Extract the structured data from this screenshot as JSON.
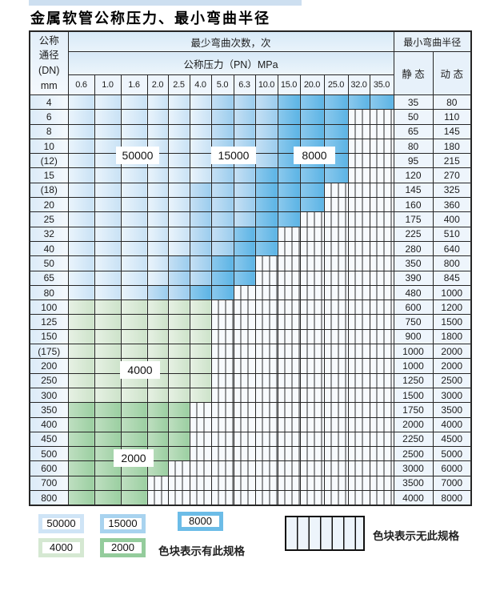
{
  "page": {
    "title": "金属软管公称压力、最小弯曲半径"
  },
  "table": {
    "dn_header_lines": [
      "公称",
      "通径",
      "(DN)",
      "mm"
    ],
    "cycles_header": "最少弯曲次数，次",
    "pressure_header": "公称压力（PN）MPa",
    "radius_header": "最小弯曲半径",
    "static_label": "静 态",
    "dynamic_label": "动 态",
    "pressures": [
      "0.6",
      "1.0",
      "1.6",
      "2.0",
      "2.5",
      "4.0",
      "5.0",
      "6.3",
      "10.0",
      "15.0",
      "20.0",
      "25.0",
      "32.0",
      "35.0"
    ],
    "band_codes": {
      "A": "50000 次",
      "B": "15000 次",
      "C": "8000 次",
      "D": "4000 次",
      "E": "2000 次",
      ".": "无此规格"
    },
    "rows": [
      {
        "dn": "4",
        "cells": "AAAAAABBBCCCCC",
        "static": "35",
        "dynamic": "80"
      },
      {
        "dn": "6",
        "cells": "AAAAAABBBCCC..",
        "static": "50",
        "dynamic": "110"
      },
      {
        "dn": "8",
        "cells": "AAAAAABBBCCC..",
        "static": "65",
        "dynamic": "145"
      },
      {
        "dn": "10",
        "cells": "AAAAAABBBCCC..",
        "static": "80",
        "dynamic": "180"
      },
      {
        "dn": "(12)",
        "cells": "AAAAAABBBCCC..",
        "static": "95",
        "dynamic": "215"
      },
      {
        "dn": "15",
        "cells": "AAAAAABBCCCC..",
        "static": "120",
        "dynamic": "270"
      },
      {
        "dn": "(18)",
        "cells": "AAAAABBBCCC...",
        "static": "145",
        "dynamic": "325"
      },
      {
        "dn": "20",
        "cells": "AAAAABBBCCC...",
        "static": "160",
        "dynamic": "360"
      },
      {
        "dn": "25",
        "cells": "AAAAABBBCC....",
        "static": "175",
        "dynamic": "400"
      },
      {
        "dn": "32",
        "cells": "AAAAABBCC.....",
        "static": "225",
        "dynamic": "510"
      },
      {
        "dn": "40",
        "cells": "AAAAABBCC.....",
        "static": "280",
        "dynamic": "640"
      },
      {
        "dn": "50",
        "cells": "AAAABBCC......",
        "static": "350",
        "dynamic": "800"
      },
      {
        "dn": "65",
        "cells": "AAAABBCC......",
        "static": "390",
        "dynamic": "845"
      },
      {
        "dn": "80",
        "cells": "AAABBCC.......",
        "static": "480",
        "dynamic": "1000"
      },
      {
        "dn": "100",
        "cells": "DDDDDD........",
        "static": "600",
        "dynamic": "1200"
      },
      {
        "dn": "125",
        "cells": "DDDDDD........",
        "static": "750",
        "dynamic": "1500"
      },
      {
        "dn": "150",
        "cells": "DDDDDD........",
        "static": "900",
        "dynamic": "1800"
      },
      {
        "dn": "(175)",
        "cells": "DDDDDD........",
        "static": "1000",
        "dynamic": "2000"
      },
      {
        "dn": "200",
        "cells": "DDDDDD........",
        "static": "1000",
        "dynamic": "2000"
      },
      {
        "dn": "250",
        "cells": "DDDDDD........",
        "static": "1250",
        "dynamic": "2500"
      },
      {
        "dn": "300",
        "cells": "DDDDDD........",
        "static": "1500",
        "dynamic": "3000"
      },
      {
        "dn": "350",
        "cells": "EEEEE.........",
        "static": "1750",
        "dynamic": "3500"
      },
      {
        "dn": "400",
        "cells": "EEEEE.........",
        "static": "2000",
        "dynamic": "4000"
      },
      {
        "dn": "450",
        "cells": "EEEEE.........",
        "static": "2250",
        "dynamic": "4500"
      },
      {
        "dn": "500",
        "cells": "EEEEE.........",
        "static": "2500",
        "dynamic": "5000"
      },
      {
        "dn": "600",
        "cells": "EEEE..........",
        "static": "3000",
        "dynamic": "6000"
      },
      {
        "dn": "700",
        "cells": "EEE...........",
        "static": "3500",
        "dynamic": "7000"
      },
      {
        "dn": "800",
        "cells": "EEE...........",
        "static": "4000",
        "dynamic": "8000"
      }
    ]
  },
  "overlay_labels": [
    {
      "text": "50000"
    },
    {
      "text": "15000"
    },
    {
      "text": "8000"
    },
    {
      "text": "4000"
    },
    {
      "text": "2000"
    }
  ],
  "legend": {
    "items": [
      {
        "value": "50000",
        "color": "#cfe4f6"
      },
      {
        "value": "15000",
        "color": "#a8d3ef"
      },
      {
        "value": "8000",
        "color": "#6cbce7"
      },
      {
        "value": "4000",
        "color": "#d5e8d2"
      },
      {
        "value": "2000",
        "color": "#94cc9c"
      }
    ],
    "has_spec_text": "色块表示有此规格",
    "no_spec_text": "色块表示无此规格"
  },
  "colors": {
    "band_50000": "#c9e2f5",
    "band_15000": "#9bcdee",
    "band_8000": "#5cb4e5",
    "band_4000": "#cde3ca",
    "band_2000": "#9bcfa1",
    "header_blue": "#d7e9f7",
    "table_border": "#262626",
    "top_strip": "#cddff0"
  }
}
